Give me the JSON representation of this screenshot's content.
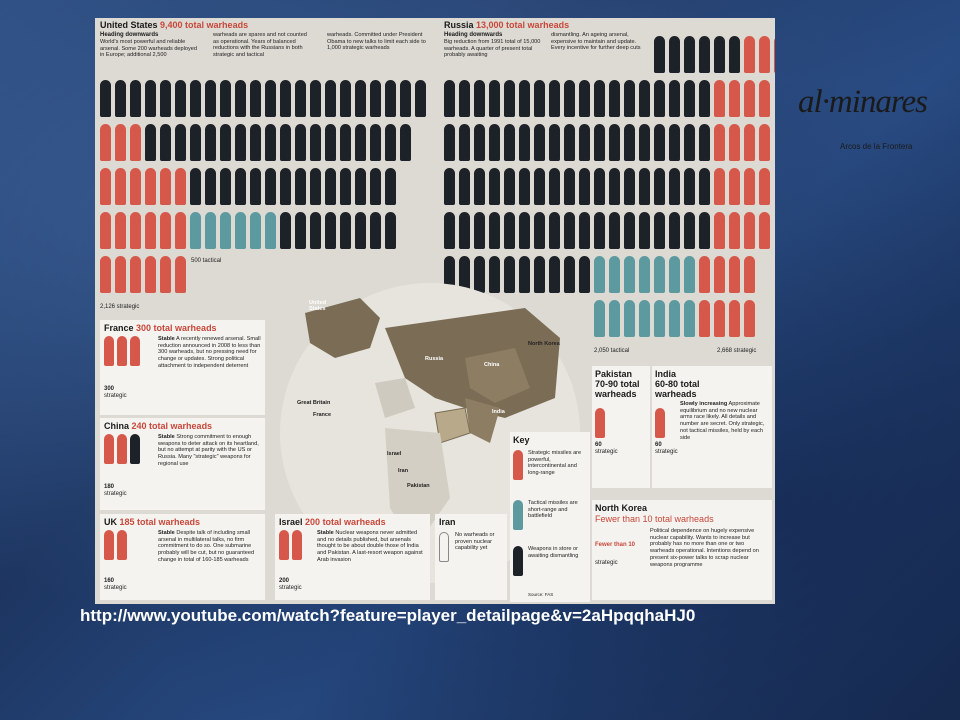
{
  "url": "http://www.youtube.com/watch?feature=player_detailpage&v=2aHpqqhaHJ0",
  "logo": {
    "text": "al·minares",
    "subtitle": "Arcos de la Frontera"
  },
  "us": {
    "name": "United States",
    "total": "9,400 total warheads",
    "subhead": "Heading downwards",
    "text1": "World's most powerful and reliable arsenal. Some 200 warheads deployed in Europe; additional 2,500",
    "text2": "warheads are spares and not counted as operational. Years of balanced reductions with the Russians in both strategic and tactical",
    "text3": "warheads. Committed under President Obama to new talks to limit each side to 1,000 strategic warheads",
    "tactical_label": "500 tactical",
    "strategic_label": "2,126 strategic"
  },
  "russia": {
    "name": "Russia",
    "total": "13,000 total warheads",
    "subhead": "Heading downwards",
    "text1": "Big reduction from 1991 total of 15,000 warheads. A quarter of present total probably awaiting",
    "text2": "dismantling. An ageing arsenal, expensive to maintain and update. Every incentive for further deep cuts",
    "tactical_label": "2,050 tactical",
    "strategic_label": "2,668 strategic"
  },
  "france": {
    "name": "France",
    "total": "300 total warheads",
    "status": "Stable",
    "text": "A recently renewed arsenal. Small reduction announced in 2008 to less than 300 warheads, but no pressing need for change or updates. Strong political attachment to independent deterrent",
    "count": "300",
    "count_label": "strategic"
  },
  "china": {
    "name": "China",
    "total": "240 total warheads",
    "status": "Stable",
    "text": "Strong commitment to enough weapons to deter attack on its heartland, but no attempt at parity with the US or Russia. Many \"strategic\" weapons for regional use",
    "count": "180",
    "count_label": "strategic"
  },
  "uk": {
    "name": "UK",
    "total": "185 total warheads",
    "status": "Stable",
    "text": "Despite talk of including small arsenal in multilateral talks, no firm commitment to do so. One submarine probably will be cut, but no guaranteed change in total of 160-185 warheads",
    "count": "160",
    "count_label": "strategic"
  },
  "israel": {
    "name": "Israel",
    "total": "200 total warheads",
    "status": "Stable",
    "text": "Nuclear weapons never admitted and no details published, but arsenals thought to be about double those of India and Pakistan. A last-resort weapon against Arab invasion",
    "count": "200",
    "count_label": "strategic"
  },
  "iran": {
    "name": "Iran",
    "text": "No warheads or proven nuclear capability yet"
  },
  "pakistan": {
    "name": "Pakistan",
    "total": "70-90 total warheads",
    "count": "60",
    "count_label": "strategic"
  },
  "india": {
    "name": "India",
    "total": "60-80 total warheads",
    "status": "Slowly increasing",
    "text": "Approximate equilibrium and no new nuclear arms race likely. All details and number are secret. Only strategic, not tactical missiles, held by each side",
    "count": "60",
    "count_label": "strategic"
  },
  "north_korea": {
    "name": "North Korea",
    "total": "Fewer than 10 total warheads",
    "count": "Fewer than 10",
    "count_label": "strategic",
    "text": "Political dependence on hugely expensive nuclear capability. Wants to increase but probably has no more than one or two warheads operational. Intentions depend on present six-power talks to scrap nuclear weapons programme"
  },
  "key": {
    "title": "Key",
    "strategic": "Strategic missiles are powerful, intercontinental and long-range",
    "tactical": "Tactical missiles are short-range and battlefield",
    "store": "Weapons in store or awaiting dismantling"
  },
  "source": "Source: FAS",
  "map_labels": {
    "us": "United States",
    "russia": "Russia",
    "china": "China",
    "india": "India",
    "nk": "North Korea",
    "gb": "Great Britain",
    "france": "France",
    "israel": "Israel",
    "iran": "Iran",
    "pakistan": "Pakistan"
  },
  "colors": {
    "strategic": "#d6584a",
    "tactical": "#5c9aa0",
    "store": "#1d2128"
  }
}
